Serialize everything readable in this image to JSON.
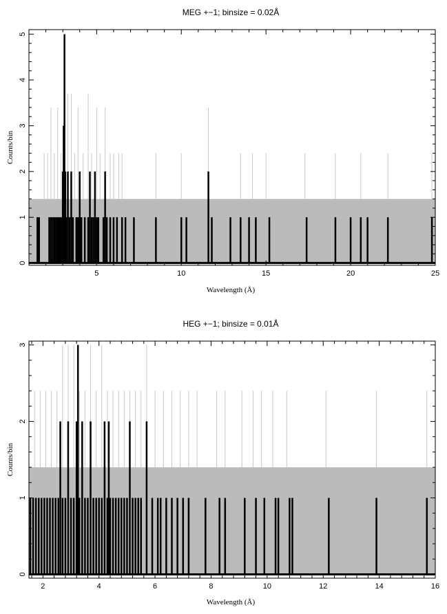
{
  "chart_data": [
    {
      "type": "bar",
      "title": "MEG +−1; binsize = 0.02Å",
      "xlabel": "Wavelength (Å)",
      "ylabel": "Counts/bin",
      "xlim": [
        1.0,
        25.0
      ],
      "ylim": [
        -0.05,
        5.1
      ],
      "xticks": [
        5,
        10,
        15,
        20,
        25
      ],
      "yticks": [
        0,
        1,
        2,
        3,
        4,
        5
      ],
      "grid": false,
      "series": [
        {
          "role": "background-band",
          "color": "#bbbbbb",
          "y_range": [
            0,
            1.4
          ]
        },
        {
          "role": "background-spikes",
          "color": "#c8c8c8",
          "x": [
            1.9,
            2.1,
            2.3,
            2.5,
            2.7,
            2.9,
            3.1,
            3.3,
            3.5,
            3.7,
            3.9,
            4.2,
            4.5,
            4.7,
            5.0,
            5.2,
            5.5,
            5.8,
            6.0,
            6.3,
            6.5,
            8.5,
            10.0,
            11.6,
            13.5,
            14.2,
            15.0,
            17.3,
            19.1,
            20.6,
            22.2,
            24.8
          ],
          "values": [
            2.4,
            2.4,
            3.4,
            2.4,
            3.4,
            2.4,
            3.7,
            3.7,
            3.7,
            2.4,
            3.4,
            2.4,
            3.7,
            2.4,
            3.4,
            2.4,
            3.4,
            2.4,
            2.4,
            2.4,
            2.4,
            2.4,
            2.4,
            3.4,
            2.4,
            2.4,
            2.4,
            2.4,
            2.4,
            2.4,
            2.4,
            2.4
          ]
        },
        {
          "role": "data",
          "color": "#000000",
          "x": [
            1.5,
            1.6,
            2.2,
            2.3,
            2.4,
            2.5,
            2.6,
            2.7,
            2.8,
            2.9,
            3.0,
            3.05,
            3.1,
            3.15,
            3.2,
            3.3,
            3.4,
            3.5,
            3.6,
            3.8,
            3.9,
            4.0,
            4.05,
            4.1,
            4.3,
            4.5,
            4.6,
            4.7,
            4.8,
            4.9,
            5.0,
            5.1,
            5.4,
            5.5,
            5.6,
            5.8,
            6.0,
            6.2,
            6.5,
            6.7,
            7.2,
            8.5,
            10.0,
            10.3,
            11.6,
            11.8,
            12.9,
            13.5,
            14.0,
            14.4,
            15.2,
            17.4,
            19.1,
            20.0,
            20.6,
            21.0,
            22.2,
            24.8
          ],
          "values": [
            1,
            1,
            1,
            1,
            1,
            1,
            1,
            1,
            1,
            1,
            2,
            3,
            5,
            2,
            1,
            2,
            1,
            2,
            1,
            1,
            1,
            2,
            1,
            1,
            1,
            1,
            2,
            1,
            1,
            2,
            1,
            1,
            1,
            2,
            1,
            1,
            1,
            1,
            1,
            1,
            1,
            1,
            1,
            1,
            2,
            1,
            1,
            1,
            1,
            1,
            1,
            1,
            1,
            1,
            1,
            1,
            1,
            1
          ]
        }
      ]
    },
    {
      "type": "bar",
      "title": "HEG +−1; binsize = 0.01Å",
      "xlabel": "Wavelength (Å)",
      "ylabel": "Counts/bin",
      "xlim": [
        1.5,
        16.0
      ],
      "ylim": [
        -0.05,
        3.05
      ],
      "xticks": [
        2,
        4,
        6,
        8,
        10,
        12,
        14,
        16
      ],
      "yticks": [
        0,
        1,
        2,
        3
      ],
      "grid": false,
      "series": [
        {
          "role": "background-band",
          "color": "#bbbbbb",
          "y_range": [
            0,
            1.4
          ]
        },
        {
          "role": "background-spikes",
          "color": "#c8c8c8",
          "x": [
            1.7,
            1.9,
            2.1,
            2.3,
            2.5,
            2.7,
            2.9,
            3.1,
            3.3,
            3.5,
            3.7,
            3.9,
            4.1,
            4.3,
            4.5,
            4.7,
            4.9,
            5.1,
            5.3,
            5.5,
            5.7,
            6.0,
            6.3,
            6.6,
            6.9,
            7.2,
            7.5,
            8.2,
            8.5,
            9.1,
            9.5,
            9.8,
            10.2,
            10.7,
            12.1,
            13.9,
            15.7
          ],
          "values": [
            2.4,
            2.4,
            2.4,
            2.4,
            2.4,
            3.0,
            3.0,
            3.0,
            2.4,
            2.4,
            3.0,
            2.4,
            3.0,
            2.4,
            2.4,
            2.4,
            2.4,
            2.4,
            2.4,
            2.4,
            3.0,
            2.4,
            2.4,
            2.4,
            2.4,
            2.4,
            2.4,
            2.4,
            2.4,
            2.4,
            2.4,
            2.4,
            2.4,
            2.4,
            2.4,
            2.4,
            2.4
          ]
        },
        {
          "role": "data",
          "color": "#000000",
          "x": [
            1.55,
            1.65,
            1.75,
            1.85,
            1.95,
            2.05,
            2.15,
            2.25,
            2.35,
            2.45,
            2.55,
            2.62,
            2.7,
            2.8,
            2.9,
            3.0,
            3.1,
            3.2,
            3.25,
            3.3,
            3.4,
            3.5,
            3.6,
            3.7,
            3.8,
            3.9,
            4.0,
            4.1,
            4.2,
            4.3,
            4.35,
            4.4,
            4.5,
            4.6,
            4.7,
            4.8,
            4.9,
            5.0,
            5.1,
            5.2,
            5.3,
            5.4,
            5.5,
            5.7,
            5.9,
            6.1,
            6.2,
            6.4,
            6.6,
            6.8,
            7.0,
            7.2,
            7.8,
            8.3,
            8.5,
            9.2,
            9.6,
            9.9,
            10.3,
            10.4,
            10.8,
            10.9,
            12.2,
            13.9,
            15.7
          ],
          "values": [
            1,
            1,
            1,
            1,
            1,
            1,
            1,
            1,
            1,
            1,
            1,
            2,
            1,
            1,
            2,
            1,
            1,
            2,
            3,
            1,
            2,
            1,
            1,
            2,
            1,
            1,
            1,
            1,
            2,
            1,
            2,
            1,
            1,
            1,
            1,
            1,
            1,
            1,
            2,
            1,
            1,
            1,
            1,
            2,
            1,
            1,
            1,
            1,
            1,
            1,
            1,
            1,
            1,
            1,
            1,
            1,
            1,
            1,
            1,
            1,
            1,
            1,
            1,
            1,
            1
          ]
        }
      ]
    }
  ]
}
